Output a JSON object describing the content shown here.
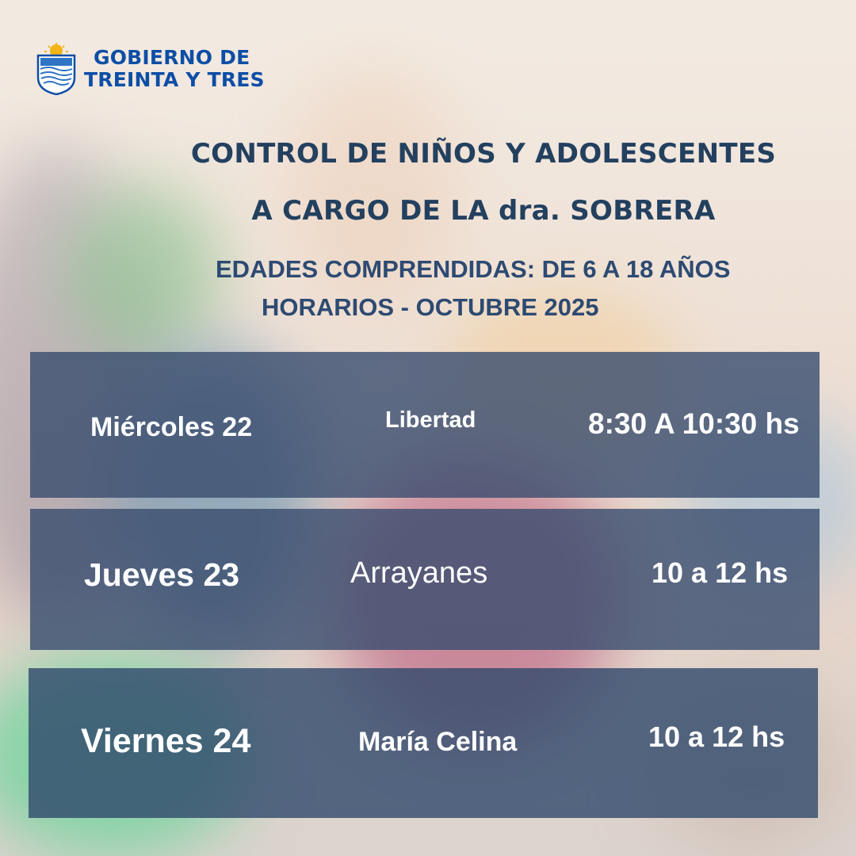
{
  "logo": {
    "line1": "GOBIERNO DE",
    "line2": "TREINTA Y TRES",
    "icon": "crest-icon"
  },
  "title": {
    "line1": "CONTROL DE NIÑOS Y ADOLESCENTES",
    "line2": "A CARGO DE LA dra. SOBRERA"
  },
  "subtitle": {
    "ages": "EDADES COMPRENDIDAS: DE 6 A 18 AÑOS",
    "schedule": "HORARIOS  -  OCTUBRE 2025"
  },
  "rows": [
    {
      "day": "Miércoles 22",
      "place": "Libertad",
      "time": "8:30 A 10:30 hs"
    },
    {
      "day": "Jueves  23",
      "place": "Arrayanes",
      "time": "10 a 12 hs"
    },
    {
      "day": "Viernes 24",
      "place": "María Celina",
      "time": "10 a 12 hs"
    }
  ],
  "colors": {
    "brand_blue": "#0d4ea6",
    "title_navy": "#23405f",
    "row_panel": "#384c6e"
  }
}
